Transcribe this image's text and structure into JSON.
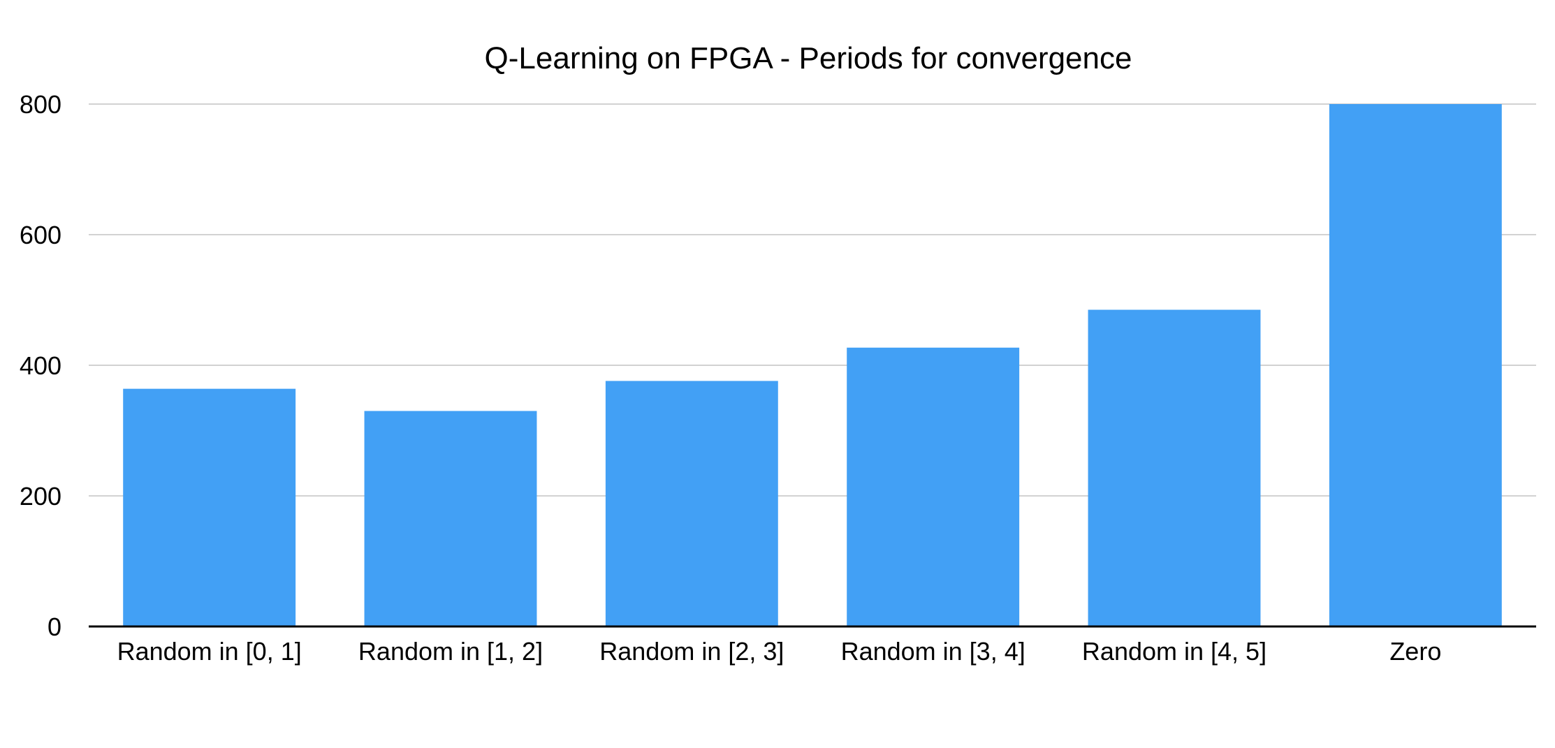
{
  "chart_data": {
    "type": "bar",
    "title": "Q-Learning on FPGA - Periods for convergence",
    "xlabel": "",
    "ylabel": "",
    "categories": [
      "Random in [0, 1]",
      "Random in [1, 2]",
      "Random in [2, 3]",
      "Random in [3, 4]",
      "Random in [4, 5]",
      "Zero"
    ],
    "values": [
      364,
      330,
      376,
      427,
      485,
      800
    ],
    "ylim": [
      0,
      800
    ],
    "yticks": [
      0,
      200,
      400,
      600,
      800
    ],
    "grid": true,
    "legend": "none",
    "colors": {
      "bar": "#42a0f5",
      "grid": "#c4c4c4",
      "axis": "#000000"
    }
  }
}
